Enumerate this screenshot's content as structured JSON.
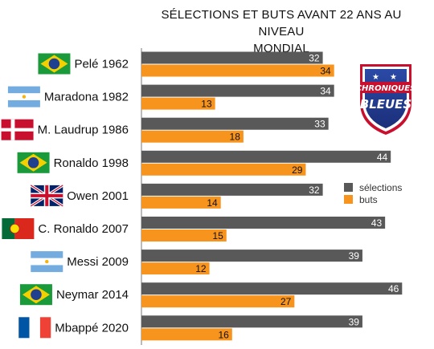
{
  "title_lines": [
    "SÉLECTIONS ET BUTS AVANT 22 ANS AU NIVEAU",
    "MONDIAL"
  ],
  "badge": {
    "line1": "CHRONIQUES",
    "line2": "BLEUES",
    "icon": "shield-logo"
  },
  "chart_data": {
    "type": "bar",
    "orientation": "horizontal",
    "title": "SÉLECTIONS ET BUTS AVANT 22 ANS AU NIVEAU MONDIAL",
    "categories": [
      "Pelé 1962",
      "Maradona 1982",
      "M. Laudrup 1986",
      "Ronaldo 1998",
      "Owen 2001",
      "C. Ronaldo 2007",
      "Messi 2009",
      "Neymar 2014",
      "Mbappé 2020"
    ],
    "flags": [
      "brazil",
      "argentina",
      "denmark",
      "brazil",
      "united-kingdom",
      "portugal",
      "argentina",
      "brazil",
      "france"
    ],
    "series": [
      {
        "name": "sélections",
        "color": "#595959",
        "values": [
          32,
          34,
          33,
          44,
          32,
          43,
          39,
          46,
          39
        ]
      },
      {
        "name": "buts",
        "color": "#f7941d",
        "values": [
          34,
          13,
          18,
          29,
          14,
          15,
          12,
          27,
          16
        ]
      }
    ],
    "xlim": [
      0,
      50
    ],
    "grid": false,
    "legend": "right"
  }
}
